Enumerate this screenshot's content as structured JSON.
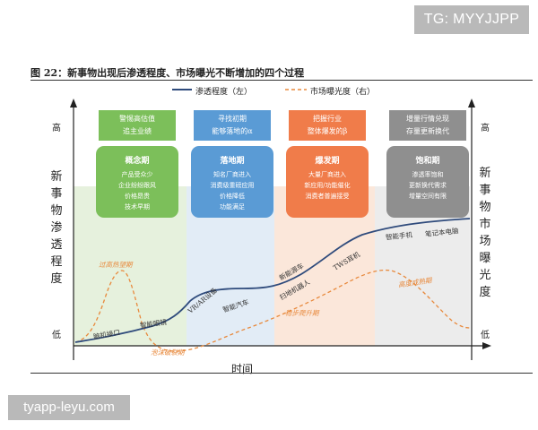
{
  "watermark_top": "TG: MYYJJPP",
  "watermark_bottom": "tyapp-leyu.com",
  "figure_title": "图 22：新事物出现后渗透程度、市场曝光不断增加的四个过程",
  "legend": {
    "penetration": "渗透程度（左）",
    "exposure": "市场曝光度（右）"
  },
  "left_axis": {
    "label": [
      "新",
      "事",
      "物",
      "渗",
      "透",
      "程",
      "度"
    ],
    "high": "高",
    "low": "低"
  },
  "right_axis": {
    "label": [
      "新",
      "事",
      "物",
      "市",
      "场",
      "曝",
      "光",
      "度"
    ],
    "high": "高",
    "low": "低"
  },
  "x_axis_label": "时间",
  "colors": {
    "green": "#7cbf5a",
    "blue": "#5a9bd5",
    "orange": "#f07c4a",
    "gray": "#8f8f8f",
    "penetration_line": "#2f4b7c",
    "exposure_line": "#e8893c"
  },
  "phases": [
    {
      "top": [
        "警惕高估值",
        "追主业绩"
      ],
      "title": "概念期",
      "lines": [
        "产品受众少",
        "企业纷纷跟风",
        "价格昂贵",
        "技术早期"
      ]
    },
    {
      "top": [
        "寻找初期",
        "能够落地的α"
      ],
      "title": "落地期",
      "lines": [
        "知名厂商进入",
        "消费级重磅应用",
        "价格降低",
        "功能满足"
      ]
    },
    {
      "top": [
        "把握行业",
        "整体爆发的β"
      ],
      "title": "爆发期",
      "lines": [
        "大量厂商进入",
        "新应用/功能催化",
        "消费者普遍接受"
      ]
    },
    {
      "top": [
        "增量行情兑现",
        "存量更新换代"
      ],
      "title": "饱和期",
      "lines": [
        "渗透率饱和",
        "更新换代需求",
        "增量空间有限"
      ]
    }
  ],
  "annotations": {
    "over_hype": "过高热望期",
    "brain_computer": "脑机接口",
    "smart_glasses": "智能眼镜",
    "vr_ar": "VR/AR设备",
    "smart_car": "智能汽车",
    "new_energy_car": "新能源车",
    "sweeping_robot": "扫地机器人",
    "tws_earphone": "TWS耳机",
    "smart_phone": "智能手机",
    "laptop": "笔记本电脑",
    "steady_climb": "稳步爬升期",
    "disillusion": "泡沫破裂期",
    "high_plateau": "高度成熟期"
  }
}
